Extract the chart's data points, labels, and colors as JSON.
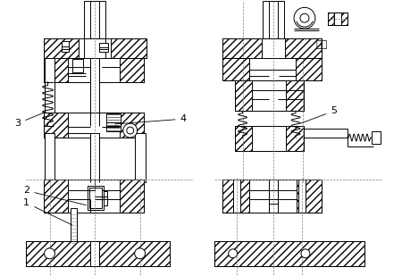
{
  "bg_color": "#ffffff",
  "lw": 0.7,
  "label_fs": 8,
  "annot_fs": 8
}
